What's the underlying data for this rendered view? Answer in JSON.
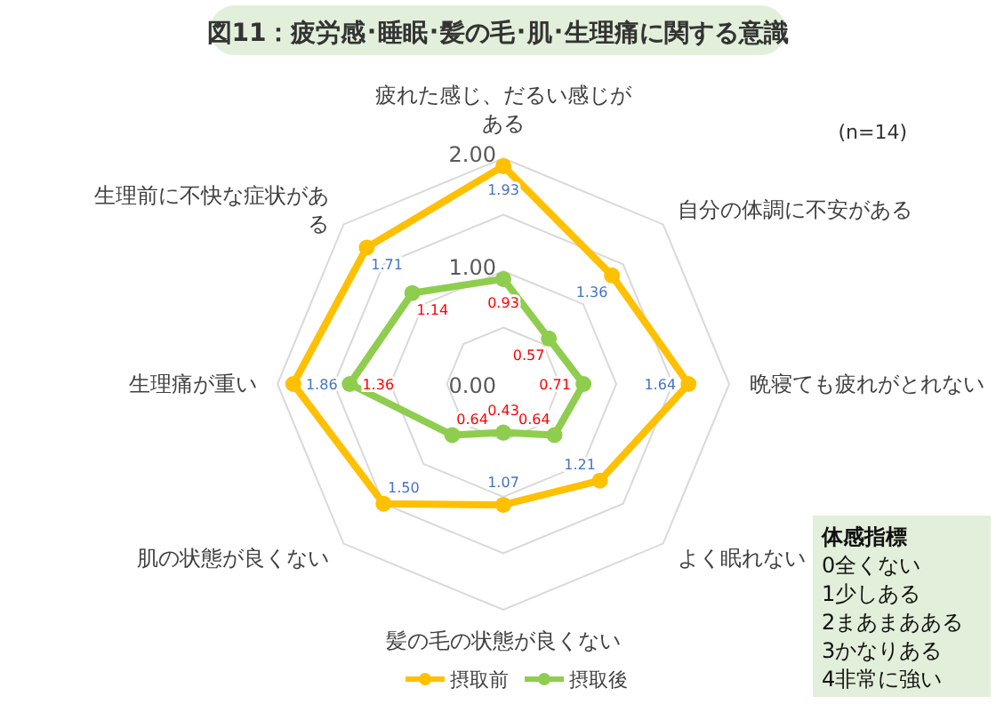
{
  "chart_data": {
    "type": "radar",
    "title": "図11：疲労感･睡眠･髪の毛･肌･生理痛に関する意識",
    "categories": [
      "疲れた感じ、だるい感じがある",
      "自分の体調に不安がある",
      "晩寝ても疲れがとれない",
      "よく眠れない",
      "髪の毛の状態が良くない",
      "肌の状態が良くない",
      "生理痛が重い",
      "生理前に不快な症状がある"
    ],
    "series": [
      {
        "name": "摂取前",
        "color": "#ffc000",
        "values": [
          1.93,
          1.36,
          1.64,
          1.21,
          1.07,
          1.5,
          1.86,
          1.71
        ],
        "value_labels": [
          "1.93",
          "1.36",
          "1.64",
          "1.21",
          "1.07",
          "1.50",
          "1.86",
          "1.71"
        ]
      },
      {
        "name": "摂取後",
        "color": "#8fcd4f",
        "values": [
          0.93,
          0.57,
          0.71,
          0.64,
          0.43,
          0.64,
          1.36,
          1.14
        ],
        "value_labels": [
          "0.93",
          "0.57",
          "0.71",
          "0.64",
          "0.43",
          "0.64",
          "1.36",
          "1.14"
        ]
      }
    ],
    "ylim": [
      0,
      2
    ],
    "yticks": [
      {
        "value": 0,
        "label": "0.00"
      },
      {
        "value": 1,
        "label": "1.00"
      },
      {
        "value": 2,
        "label": "2.00"
      }
    ],
    "grid": true,
    "legend": "bottom",
    "marker": "circle",
    "annotations": [
      "(n=14)",
      "体感指標",
      "0全くない",
      "1少しある",
      "2まあまあある",
      "3かなりある",
      "4非常に強い"
    ]
  }
}
